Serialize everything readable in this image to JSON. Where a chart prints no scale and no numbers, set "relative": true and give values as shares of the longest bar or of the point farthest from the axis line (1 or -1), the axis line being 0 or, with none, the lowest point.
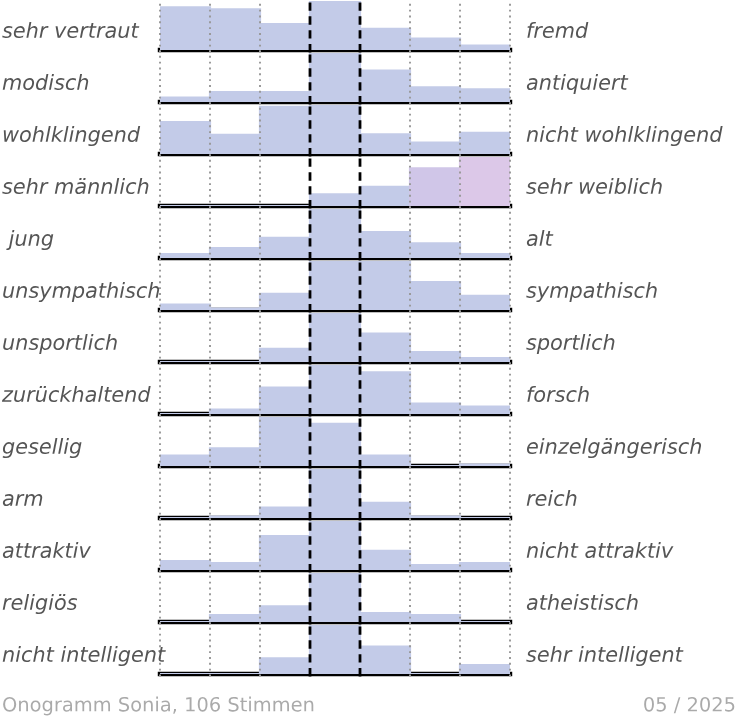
{
  "chart_data": [
    {
      "type": "bar",
      "relative": true,
      "ylabel": "sehr vertraut",
      "y2label": "fremd",
      "categories": [
        null,
        null,
        null,
        null,
        null,
        null,
        null
      ],
      "values": [
        0.87,
        0.83,
        0.53,
        1,
        0.43,
        0.23,
        0.09
      ],
      "color": "#c3cbe8",
      "grid": "x"
    },
    {
      "type": "bar",
      "relative": true,
      "ylabel": "modisch",
      "y2label": "antiquiert",
      "categories": [
        null,
        null,
        null,
        null,
        null,
        null,
        null
      ],
      "values": [
        0.09,
        0.2,
        0.2,
        1,
        0.64,
        0.3,
        0.26
      ],
      "color": "#c3cbe8",
      "grid": "x"
    },
    {
      "type": "bar",
      "relative": true,
      "ylabel": "wohlklingend",
      "y2label": "nicht wohlklingend",
      "categories": [
        null,
        null,
        null,
        null,
        null,
        null,
        null
      ],
      "values": [
        0.65,
        0.39,
        0.96,
        1,
        0.4,
        0.23,
        0.43
      ],
      "color": "#c3cbe8",
      "grid": "x"
    },
    {
      "type": "bar",
      "relative": true,
      "ylabel": "sehr männlich",
      "y2label": "sehr weiblich",
      "categories": [
        null,
        null,
        null,
        null,
        null,
        null,
        null
      ],
      "values": [
        0,
        0,
        0,
        0.24,
        0.39,
        0.77,
        1
      ],
      "colors": [
        "#c3cbe8",
        "#c3cbe8",
        "#c3cbe8",
        "#c3cbe8",
        "#c3cbe8",
        "#d0c6e8",
        "#dcc8e8"
      ],
      "grid": "x"
    },
    {
      "type": "bar",
      "relative": true,
      "ylabel": " jung",
      "y2label": "alt",
      "categories": [
        null,
        null,
        null,
        null,
        null,
        null,
        null
      ],
      "values": [
        0.08,
        0.2,
        0.41,
        1,
        0.53,
        0.3,
        0.08
      ],
      "color": "#c3cbe8",
      "grid": "x"
    },
    {
      "type": "bar",
      "relative": true,
      "ylabel": "unsympathisch",
      "y2label": "sympathisch",
      "categories": [
        null,
        null,
        null,
        null,
        null,
        null,
        null
      ],
      "values": [
        0.11,
        0.03,
        0.33,
        1,
        1,
        0.57,
        0.29
      ],
      "color": "#c3cbe8",
      "grid": "x"
    },
    {
      "type": "bar",
      "relative": true,
      "ylabel": "unsportlich",
      "y2label": "sportlich",
      "categories": [
        null,
        null,
        null,
        null,
        null,
        null,
        null
      ],
      "values": [
        0,
        0,
        0.27,
        1,
        0.58,
        0.2,
        0.08
      ],
      "color": "#c3cbe8",
      "grid": "x"
    },
    {
      "type": "bar",
      "relative": true,
      "ylabel": "zurückhaltend",
      "y2label": "forsch",
      "categories": [
        null,
        null,
        null,
        null,
        null,
        null,
        null
      ],
      "values": [
        0,
        0.09,
        0.54,
        1,
        0.85,
        0.21,
        0.15
      ],
      "color": "#c3cbe8",
      "grid": "x"
    },
    {
      "type": "bar",
      "relative": true,
      "ylabel": "gesellig",
      "y2label": "einzelgängerisch",
      "categories": [
        null,
        null,
        null,
        null,
        null,
        null,
        null
      ],
      "values": [
        0.21,
        0.36,
        1,
        0.86,
        0.21,
        0,
        0.03
      ],
      "color": "#c3cbe8",
      "grid": "x"
    },
    {
      "type": "bar",
      "relative": true,
      "ylabel": "arm",
      "y2label": "reich",
      "categories": [
        null,
        null,
        null,
        null,
        null,
        null,
        null
      ],
      "values": [
        0,
        0.03,
        0.21,
        1,
        0.31,
        0.03,
        0
      ],
      "color": "#c3cbe8",
      "grid": "x"
    },
    {
      "type": "bar",
      "relative": true,
      "ylabel": "attraktiv",
      "y2label": "nicht attraktiv",
      "categories": [
        null,
        null,
        null,
        null,
        null,
        null,
        null
      ],
      "values": [
        0.18,
        0.14,
        0.69,
        1,
        0.39,
        0.1,
        0.14
      ],
      "color": "#c3cbe8",
      "grid": "x"
    },
    {
      "type": "bar",
      "relative": true,
      "ylabel": "religiös",
      "y2label": "atheistisch",
      "categories": [
        null,
        null,
        null,
        null,
        null,
        null,
        null
      ],
      "values": [
        0,
        0.14,
        0.32,
        1,
        0.18,
        0.14,
        0
      ],
      "color": "#c3cbe8",
      "grid": "x"
    },
    {
      "type": "bar",
      "relative": true,
      "ylabel": "nicht intelligent",
      "y2label": "sehr intelligent",
      "categories": [
        null,
        null,
        null,
        null,
        null,
        null,
        null
      ],
      "values": [
        0,
        0,
        0.32,
        1,
        0.56,
        0,
        0.18
      ],
      "color": "#c3cbe8",
      "grid": "x",
      "annotations": [
        "Onogramm Sonia, 106 Stimmen",
        "05 / 2025"
      ]
    }
  ]
}
